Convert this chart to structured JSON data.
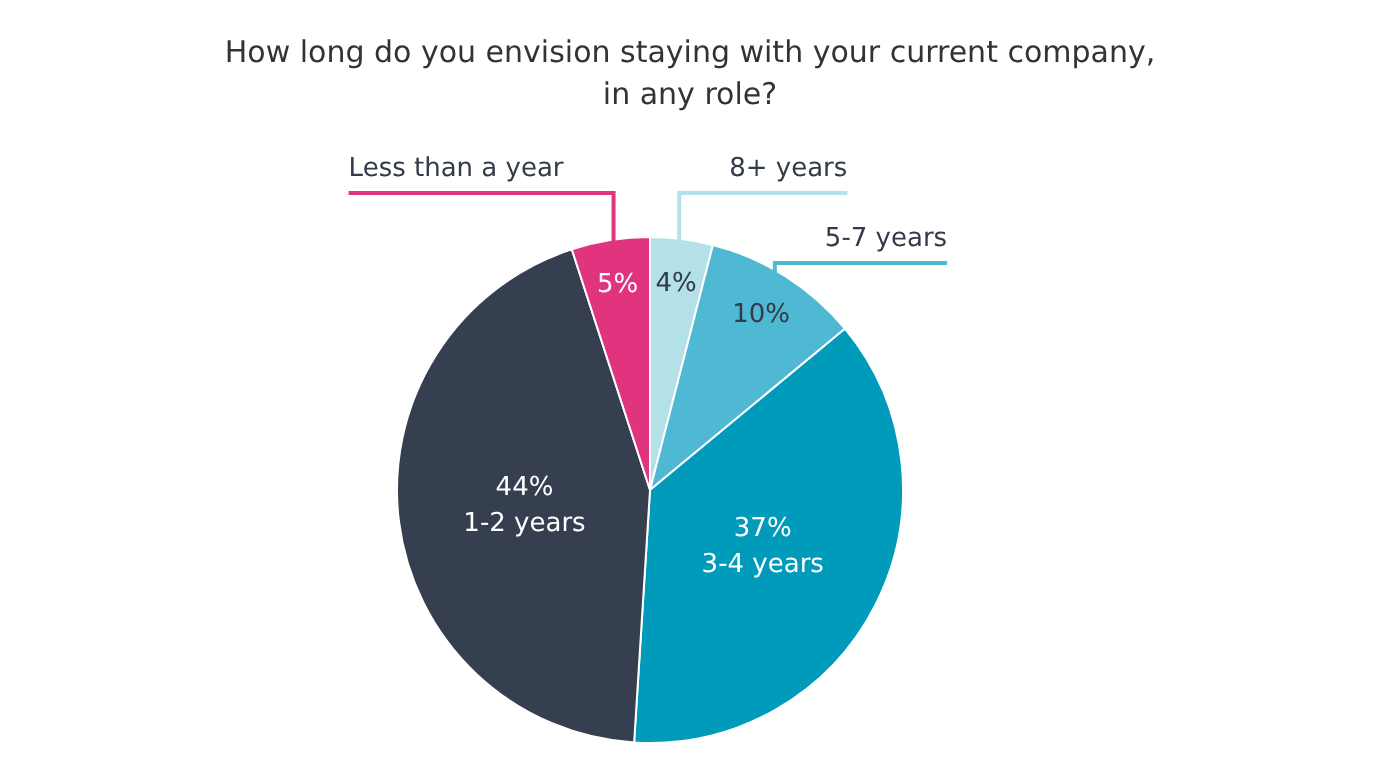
{
  "chart_data": {
    "type": "pie",
    "title": "How long do you envision staying with your current company, in any role?",
    "categories": [
      "8+ years",
      "5-7 years",
      "3-4 years",
      "1-2 years",
      "Less than a year"
    ],
    "values": [
      4,
      10,
      37,
      44,
      5
    ],
    "value_labels": [
      "4%",
      "10%",
      "37%",
      "44%",
      "5%"
    ],
    "colors": [
      "#b3e0e9",
      "#4fb9d3",
      "#009bbb",
      "#363f4f",
      "#e0347f"
    ],
    "legend": false
  }
}
